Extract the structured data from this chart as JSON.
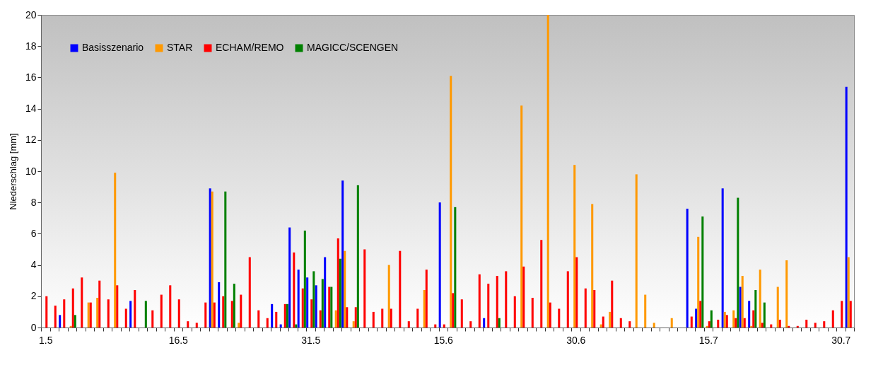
{
  "chart_data": {
    "type": "bar",
    "ylabel": "Niederschlag [mm]",
    "categories": [
      "1.5",
      null,
      null,
      null,
      null,
      null,
      null,
      null,
      null,
      null,
      null,
      null,
      null,
      null,
      null,
      "16.5",
      null,
      null,
      null,
      null,
      null,
      null,
      null,
      null,
      null,
      null,
      null,
      null,
      null,
      null,
      "31.5",
      null,
      null,
      null,
      null,
      null,
      null,
      null,
      null,
      null,
      null,
      null,
      null,
      null,
      null,
      "15.6",
      null,
      null,
      null,
      null,
      null,
      null,
      null,
      null,
      null,
      null,
      null,
      null,
      null,
      null,
      "30.6",
      null,
      null,
      null,
      null,
      null,
      null,
      null,
      null,
      null,
      null,
      null,
      null,
      null,
      null,
      "15.7",
      null,
      null,
      null,
      null,
      null,
      null,
      null,
      null,
      null,
      null,
      null,
      null,
      null,
      null,
      "30.7",
      null
    ],
    "series": [
      {
        "name": "Basisszenario",
        "color": "#0000ff",
        "values": [
          0,
          0,
          0.8,
          0,
          0,
          0,
          0,
          0,
          0,
          0,
          1.7,
          0,
          0,
          0,
          0,
          0,
          0,
          0,
          0,
          8.9,
          2.9,
          0,
          0,
          0,
          0,
          0,
          1.5,
          0.2,
          6.4,
          3.7,
          3.2,
          2.7,
          4.5,
          0,
          9.4,
          0,
          0,
          0,
          0,
          0,
          0,
          0,
          0,
          0,
          0,
          8.0,
          0,
          0,
          0,
          0,
          0.6,
          0,
          0,
          0,
          0,
          0,
          0,
          0,
          0,
          0,
          0,
          0,
          0,
          0,
          0,
          0,
          0,
          0,
          0,
          0,
          0,
          0,
          0,
          7.6,
          1.2,
          0,
          0,
          8.9,
          0,
          2.6,
          1.7,
          0,
          0,
          0,
          0,
          0,
          0,
          0,
          0,
          0,
          0,
          15.4
        ]
      },
      {
        "name": "STAR",
        "color": "#ff9900",
        "values": [
          0,
          0,
          0,
          0.1,
          0,
          1.6,
          1.9,
          0,
          9.9,
          0,
          0,
          0,
          0,
          0,
          0,
          0,
          0,
          0,
          0,
          8.7,
          0,
          0,
          0.3,
          0,
          0,
          0,
          0,
          0,
          0,
          0,
          0,
          0,
          0,
          1.1,
          4.9,
          0.4,
          0,
          0,
          0,
          4.0,
          0,
          0,
          0,
          2.4,
          0,
          0,
          16.1,
          0,
          0,
          0,
          0,
          0,
          0,
          0,
          14.2,
          0,
          0,
          20.0,
          0,
          0,
          10.4,
          0,
          7.9,
          0.2,
          1.0,
          0,
          0,
          9.8,
          2.1,
          0.3,
          0,
          0.6,
          0,
          0,
          5.8,
          0.1,
          0,
          1.0,
          1.1,
          3.3,
          0.1,
          3.7,
          0,
          2.6,
          4.3,
          0,
          0,
          0,
          0,
          0,
          0,
          4.5
        ]
      },
      {
        "name": "ECHAM/REMO",
        "color": "#ff0000",
        "values": [
          2.0,
          1.4,
          1.8,
          2.5,
          3.2,
          1.6,
          3.0,
          1.8,
          2.7,
          1.2,
          2.4,
          0,
          1.1,
          2.1,
          2.7,
          1.8,
          0.4,
          0.3,
          1.6,
          1.6,
          2.0,
          1.7,
          2.1,
          4.5,
          1.1,
          0.6,
          1.0,
          1.5,
          4.8,
          2.5,
          1.8,
          1.1,
          2.6,
          5.7,
          1.3,
          1.3,
          5.0,
          1.0,
          1.2,
          1.2,
          4.9,
          0.4,
          1.2,
          3.7,
          0.2,
          0.2,
          2.2,
          1.8,
          0.4,
          3.4,
          2.8,
          3.3,
          3.6,
          2.0,
          3.9,
          1.9,
          5.6,
          1.6,
          1.2,
          3.6,
          4.5,
          2.5,
          2.4,
          0.7,
          3.0,
          0.6,
          0.4,
          0,
          0,
          0,
          0,
          0,
          0,
          0.7,
          1.7,
          0.4,
          0.5,
          0.8,
          0.6,
          0.6,
          1.1,
          0.3,
          0.2,
          0.5,
          0.1,
          0.1,
          0.5,
          0.3,
          0.4,
          1.1,
          1.7,
          1.7
        ]
      },
      {
        "name": "MAGICC/SCENGEN",
        "color": "#008000",
        "values": [
          0,
          0,
          0,
          0.8,
          0,
          0,
          0,
          0,
          0,
          0,
          0,
          1.7,
          0,
          0,
          0,
          0,
          0,
          0,
          0,
          0,
          8.7,
          2.8,
          0,
          0,
          0,
          0,
          0,
          1.5,
          0.2,
          6.2,
          3.6,
          3.1,
          2.6,
          4.4,
          0,
          9.1,
          0,
          0,
          0,
          0,
          0,
          0,
          0,
          0,
          0,
          0,
          7.7,
          0,
          0,
          0,
          0,
          0.6,
          0,
          0,
          0,
          0,
          0,
          0,
          0,
          0,
          0,
          0,
          0,
          0,
          0,
          0,
          0,
          0,
          0,
          0,
          0,
          0,
          0,
          0,
          7.1,
          1.1,
          0,
          0,
          8.3,
          0,
          2.4,
          1.6,
          0,
          0,
          0,
          0,
          0,
          0,
          0,
          0,
          0,
          0
        ]
      }
    ],
    "ylim": [
      0,
      20
    ],
    "yticks": [
      0,
      2,
      4,
      6,
      8,
      10,
      12,
      14,
      16,
      18,
      20
    ],
    "grid": false,
    "legend": "top left"
  }
}
